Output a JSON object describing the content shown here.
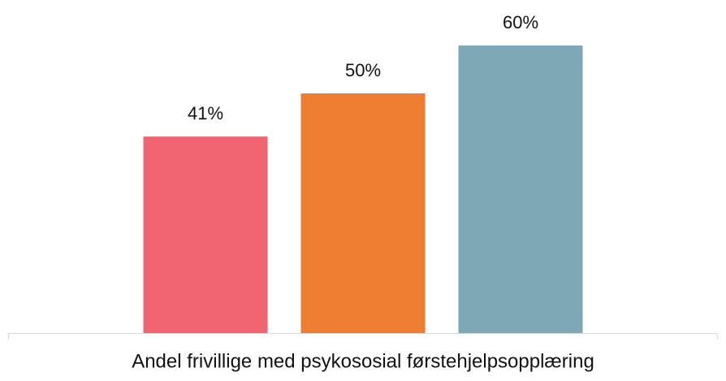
{
  "chart_data": {
    "type": "bar",
    "categories": [
      "Andel frivillige med psykososial førstehjelpsopplæring"
    ],
    "series": [
      {
        "color": "#f06571",
        "values": [
          41
        ],
        "value_labels": [
          "41%"
        ]
      },
      {
        "color": "#ed7d31",
        "values": [
          50
        ],
        "value_labels": [
          "50%"
        ]
      },
      {
        "color": "#7fa8b6",
        "values": [
          60
        ],
        "value_labels": [
          "60%"
        ]
      }
    ],
    "ylim": [
      0,
      70
    ]
  }
}
